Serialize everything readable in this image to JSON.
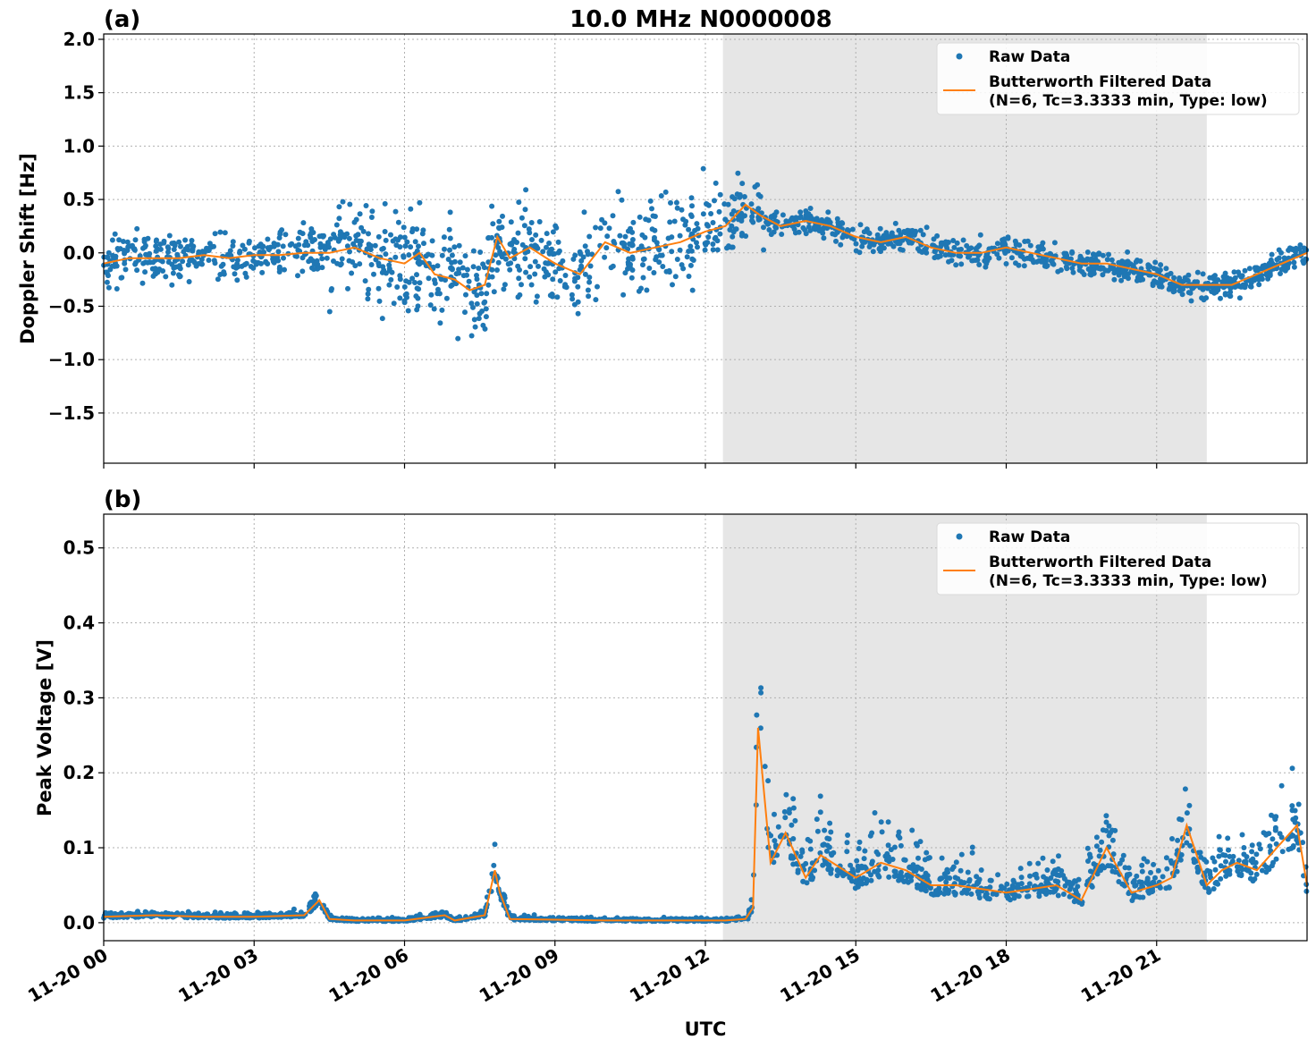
{
  "figure": {
    "title": "10.0 MHz N0000008",
    "xlabel": "UTC"
  },
  "colors": {
    "raw": "#1f77b4",
    "filtered": "#ff7f0e",
    "shade": "#e6e6e6"
  },
  "chart_data": [
    {
      "type": "scatter",
      "panel_label": "(a)",
      "title": "10.0 MHz N0000008",
      "xlabel": "UTC",
      "ylabel": "Doppler Shift [Hz]",
      "xlim_hours": [
        0,
        24
      ],
      "ylim": [
        -1.97,
        2.05
      ],
      "yticks": [
        -1.5,
        -1.0,
        -0.5,
        0.0,
        0.5,
        1.0,
        1.5,
        2.0
      ],
      "ytick_labels": [
        "−1.5",
        "−1.0",
        "−0.5",
        "0.0",
        "0.5",
        "1.0",
        "1.5",
        "2.0"
      ],
      "shaded_interval_hours": [
        12.35,
        22.0
      ],
      "legend": {
        "position": "top-right",
        "raw": "Raw Data",
        "filtered_line1": "Butterworth Filtered Data",
        "filtered_line2": "(N=6, Tc=3.3333 min, Type: low)"
      },
      "series": [
        {
          "name": "Raw Data",
          "kind": "scatter",
          "noise_envelope": true
        },
        {
          "name": "Butterworth Filtered Data",
          "kind": "line",
          "x_hours": [
            0,
            0.5,
            1,
            1.5,
            2,
            2.5,
            3,
            3.5,
            4,
            4.5,
            5,
            5.5,
            6,
            6.3,
            6.6,
            7,
            7.3,
            7.6,
            7.85,
            8.1,
            8.5,
            9,
            9.5,
            10,
            10.5,
            11,
            11.5,
            12,
            12.4,
            12.8,
            13.1,
            13.5,
            14,
            14.5,
            15,
            15.5,
            16,
            16.5,
            17,
            17.5,
            18,
            18.5,
            19,
            19.5,
            20,
            20.5,
            21,
            21.5,
            22,
            22.5,
            23,
            23.5,
            24
          ],
          "values": [
            -0.1,
            -0.05,
            -0.05,
            -0.05,
            -0.02,
            -0.05,
            -0.02,
            -0.02,
            0.0,
            0.0,
            0.05,
            -0.05,
            -0.1,
            0.0,
            -0.2,
            -0.25,
            -0.35,
            -0.3,
            0.15,
            -0.05,
            0.05,
            -0.1,
            -0.2,
            0.1,
            0.0,
            0.05,
            0.1,
            0.2,
            0.25,
            0.45,
            0.35,
            0.25,
            0.3,
            0.25,
            0.15,
            0.1,
            0.15,
            0.05,
            0.0,
            0.0,
            0.05,
            0.0,
            -0.05,
            -0.1,
            -0.1,
            -0.15,
            -0.2,
            -0.3,
            -0.3,
            -0.3,
            -0.2,
            -0.1,
            0.0
          ]
        }
      ]
    },
    {
      "type": "scatter",
      "panel_label": "(b)",
      "xlabel": "UTC",
      "ylabel": "Peak Voltage [V]",
      "xlim_hours": [
        0,
        24
      ],
      "ylim": [
        -0.024,
        0.545
      ],
      "yticks": [
        0.0,
        0.1,
        0.2,
        0.3,
        0.4,
        0.5
      ],
      "ytick_labels": [
        "0.0",
        "0.1",
        "0.2",
        "0.3",
        "0.4",
        "0.5"
      ],
      "xticks_hours": [
        0,
        3,
        6,
        9,
        12,
        15,
        18,
        21
      ],
      "xtick_labels": [
        "11-20 00",
        "11-20 03",
        "11-20 06",
        "11-20 09",
        "11-20 12",
        "11-20 15",
        "11-20 18",
        "11-20 21"
      ],
      "shaded_interval_hours": [
        12.35,
        22.0
      ],
      "legend": {
        "position": "top-right",
        "raw": "Raw Data",
        "filtered_line1": "Butterworth Filtered Data",
        "filtered_line2": "(N=6, Tc=3.3333 min, Type: low)"
      },
      "series": [
        {
          "name": "Raw Data",
          "kind": "scatter",
          "noise_envelope": true
        },
        {
          "name": "Butterworth Filtered Data",
          "kind": "line",
          "x_hours": [
            0,
            1,
            2,
            3,
            4,
            4.3,
            4.5,
            5,
            6,
            6.8,
            7,
            7.6,
            7.8,
            7.9,
            8.1,
            9,
            10,
            11,
            12,
            12.4,
            12.8,
            12.95,
            13.05,
            13.3,
            13.6,
            14,
            14.3,
            15,
            15.5,
            16,
            16.5,
            17,
            18,
            19,
            19.5,
            20,
            20.5,
            21,
            21.3,
            21.6,
            22,
            22.3,
            22.6,
            23,
            23.4,
            23.8,
            24
          ],
          "values": [
            0.008,
            0.01,
            0.008,
            0.008,
            0.01,
            0.03,
            0.005,
            0.003,
            0.003,
            0.01,
            0.003,
            0.01,
            0.07,
            0.04,
            0.005,
            0.004,
            0.003,
            0.003,
            0.003,
            0.003,
            0.005,
            0.02,
            0.26,
            0.08,
            0.12,
            0.06,
            0.09,
            0.06,
            0.08,
            0.07,
            0.05,
            0.05,
            0.04,
            0.05,
            0.03,
            0.1,
            0.04,
            0.05,
            0.06,
            0.13,
            0.05,
            0.07,
            0.08,
            0.07,
            0.1,
            0.13,
            0.05
          ]
        }
      ]
    }
  ]
}
